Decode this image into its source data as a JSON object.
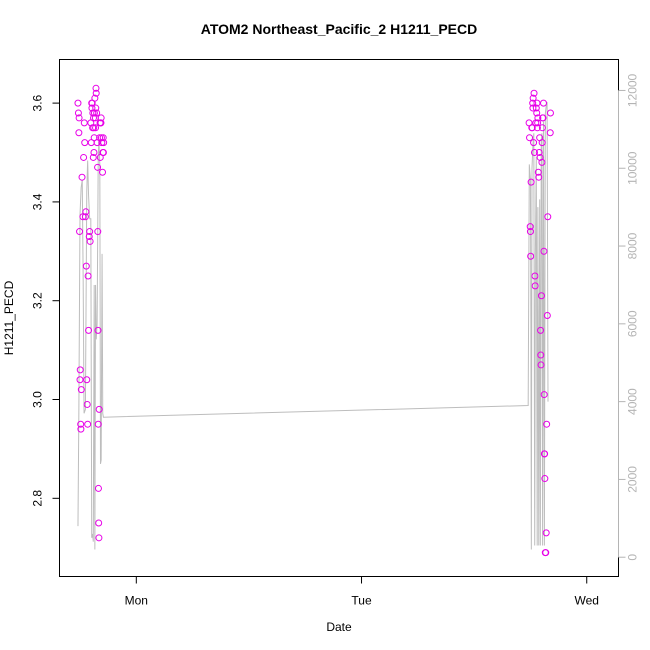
{
  "chart_data": {
    "type": "scatter",
    "title": "ATOM2 Northeast_Pacific_2 H1211_PECD",
    "xlabel": "Date",
    "ylabel": "H1211_PECD",
    "y2label": "",
    "x_unit": "days",
    "xlim": [
      -0.25,
      2.05
    ],
    "ylim": [
      2.665,
      3.665
    ],
    "y2lim": [
      -200,
      12500
    ],
    "x_ticks": [
      {
        "value": 0,
        "label": "Mon"
      },
      {
        "value": 1,
        "label": "Tue"
      },
      {
        "value": 2,
        "label": "Wed"
      }
    ],
    "y_ticks": [
      2.8,
      3.0,
      3.2,
      3.4,
      3.6
    ],
    "y2_ticks": [
      0,
      2000,
      4000,
      6000,
      8000,
      10000,
      12000
    ],
    "grid": false,
    "legend": "none",
    "colors": {
      "points": "#e800e8",
      "line": "#bdbdbd",
      "right_axis": "#b4b4b4"
    },
    "series": [
      {
        "name": "",
        "axis": "left",
        "style": "points",
        "points": [
          [
            -0.259,
            3.6
          ],
          [
            -0.257,
            3.58
          ],
          [
            -0.255,
            3.54
          ],
          [
            -0.254,
            3.57
          ],
          [
            -0.252,
            3.34
          ],
          [
            -0.25,
            3.04
          ],
          [
            -0.249,
            3.06
          ],
          [
            -0.247,
            2.95
          ],
          [
            -0.246,
            2.94
          ],
          [
            -0.244,
            3.02
          ],
          [
            -0.241,
            3.45
          ],
          [
            -0.237,
            3.37
          ],
          [
            -0.234,
            3.49
          ],
          [
            -0.231,
            3.56
          ],
          [
            -0.229,
            3.52
          ],
          [
            -0.226,
            3.37
          ],
          [
            -0.224,
            3.38
          ],
          [
            -0.222,
            3.27
          ],
          [
            -0.22,
            3.04
          ],
          [
            -0.218,
            2.99
          ],
          [
            -0.216,
            2.95
          ],
          [
            -0.214,
            3.25
          ],
          [
            -0.212,
            3.14
          ],
          [
            -0.209,
            3.33
          ],
          [
            -0.207,
            3.34
          ],
          [
            -0.205,
            3.32
          ],
          [
            -0.202,
            3.56
          ],
          [
            -0.2,
            3.52
          ],
          [
            -0.198,
            3.6
          ],
          [
            -0.197,
            3.59
          ],
          [
            -0.196,
            3.6
          ],
          [
            -0.194,
            3.55
          ],
          [
            -0.193,
            3.58
          ],
          [
            -0.191,
            3.49
          ],
          [
            -0.19,
            3.57
          ],
          [
            -0.189,
            3.55
          ],
          [
            -0.188,
            3.5
          ],
          [
            -0.187,
            3.53
          ],
          [
            -0.186,
            3.58
          ],
          [
            -0.184,
            3.61
          ],
          [
            -0.182,
            3.57
          ],
          [
            -0.181,
            3.55
          ],
          [
            -0.18,
            3.59
          ],
          [
            -0.179,
            3.63
          ],
          [
            -0.178,
            3.62
          ],
          [
            -0.176,
            3.58
          ],
          [
            -0.174,
            3.52
          ],
          [
            -0.172,
            3.47
          ],
          [
            -0.171,
            3.34
          ],
          [
            -0.17,
            3.14
          ],
          [
            -0.169,
            2.95
          ],
          [
            -0.168,
            2.82
          ],
          [
            -0.167,
            2.75
          ],
          [
            -0.166,
            2.72
          ],
          [
            -0.165,
            2.98
          ],
          [
            -0.163,
            3.53
          ],
          [
            -0.161,
            3.56
          ],
          [
            -0.16,
            3.49
          ],
          [
            -0.158,
            3.56
          ],
          [
            -0.157,
            3.56
          ],
          [
            -0.156,
            3.57
          ],
          [
            -0.155,
            3.53
          ],
          [
            -0.153,
            3.52
          ],
          [
            -0.15,
            3.46
          ],
          [
            -0.148,
            3.5
          ],
          [
            -0.147,
            3.53
          ],
          [
            -0.146,
            3.5
          ],
          [
            -0.145,
            3.52
          ],
          [
            1.744,
            3.56
          ],
          [
            1.746,
            3.53
          ],
          [
            1.749,
            3.35
          ],
          [
            1.75,
            3.34
          ],
          [
            1.751,
            3.29
          ],
          [
            1.753,
            3.44
          ],
          [
            1.756,
            3.55
          ],
          [
            1.758,
            3.55
          ],
          [
            1.76,
            3.6
          ],
          [
            1.761,
            3.59
          ],
          [
            1.762,
            3.61
          ],
          [
            1.764,
            3.52
          ],
          [
            1.766,
            3.62
          ],
          [
            1.768,
            3.5
          ],
          [
            1.77,
            3.25
          ],
          [
            1.771,
            3.23
          ],
          [
            1.774,
            3.56
          ],
          [
            1.776,
            3.59
          ],
          [
            1.778,
            3.58
          ],
          [
            1.779,
            3.6
          ],
          [
            1.781,
            3.55
          ],
          [
            1.782,
            3.56
          ],
          [
            1.783,
            3.57
          ],
          [
            1.785,
            3.46
          ],
          [
            1.787,
            3.45
          ],
          [
            1.789,
            3.5
          ],
          [
            1.791,
            3.53
          ],
          [
            1.793,
            3.49
          ],
          [
            1.795,
            3.14
          ],
          [
            1.796,
            3.09
          ],
          [
            1.797,
            3.07
          ],
          [
            1.799,
            3.21
          ],
          [
            1.801,
            3.48
          ],
          [
            1.802,
            3.52
          ],
          [
            1.803,
            3.55
          ],
          [
            1.804,
            3.57
          ],
          [
            1.806,
            3.57
          ],
          [
            1.808,
            3.6
          ],
          [
            1.81,
            3.3
          ],
          [
            1.811,
            3.01
          ],
          [
            1.812,
            2.89
          ],
          [
            1.813,
            2.89
          ],
          [
            1.814,
            2.84
          ],
          [
            1.816,
            2.69
          ],
          [
            1.818,
            2.69
          ],
          [
            1.82,
            2.73
          ],
          [
            1.822,
            2.95
          ],
          [
            1.825,
            3.17
          ],
          [
            1.827,
            3.37
          ],
          [
            1.838,
            3.54
          ],
          [
            1.839,
            3.58
          ]
        ]
      },
      {
        "name": "",
        "axis": "right",
        "style": "line",
        "points": [
          [
            -0.259,
            800
          ],
          [
            -0.255,
            3800
          ],
          [
            -0.25,
            8800
          ],
          [
            -0.245,
            9500
          ],
          [
            -0.24,
            9700
          ],
          [
            -0.236,
            7200
          ],
          [
            -0.232,
            3700
          ],
          [
            -0.226,
            3800
          ],
          [
            -0.22,
            9400
          ],
          [
            -0.216,
            10200
          ],
          [
            -0.212,
            9300
          ],
          [
            -0.207,
            8700
          ],
          [
            -0.202,
            8700
          ],
          [
            -0.198,
            500
          ],
          [
            -0.194,
            600
          ],
          [
            -0.191,
            400
          ],
          [
            -0.187,
            7000
          ],
          [
            -0.184,
            200
          ],
          [
            -0.181,
            7000
          ],
          [
            -0.178,
            5600
          ],
          [
            -0.174,
            6000
          ],
          [
            -0.169,
            10300
          ],
          [
            -0.166,
            10700
          ],
          [
            -0.162,
            10100
          ],
          [
            -0.159,
            2400
          ],
          [
            -0.156,
            2500
          ],
          [
            -0.152,
            7800
          ],
          [
            -0.149,
            3700
          ],
          [
            -0.146,
            3600
          ],
          [
            1.74,
            3900
          ],
          [
            1.745,
            10100
          ],
          [
            1.75,
            9700
          ],
          [
            1.752,
            6000
          ],
          [
            1.754,
            200
          ],
          [
            1.757,
            10000
          ],
          [
            1.761,
            10600
          ],
          [
            1.765,
            10900
          ],
          [
            1.769,
            300
          ],
          [
            1.772,
            7800
          ],
          [
            1.776,
            10300
          ],
          [
            1.78,
            300
          ],
          [
            1.783,
            9000
          ],
          [
            1.787,
            300
          ],
          [
            1.791,
            9200
          ],
          [
            1.794,
            300
          ],
          [
            1.798,
            10700
          ],
          [
            1.801,
            10900
          ],
          [
            1.804,
            300
          ],
          [
            1.808,
            11200
          ],
          [
            1.812,
            300
          ],
          [
            1.816,
            11400
          ],
          [
            1.82,
            11600
          ],
          [
            1.824,
            11700
          ],
          [
            1.828,
            4000
          ]
        ]
      }
    ]
  }
}
